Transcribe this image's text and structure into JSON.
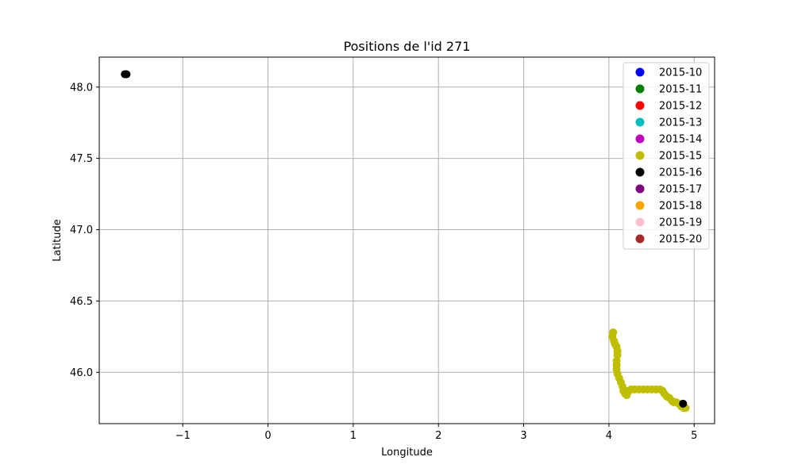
{
  "chart_data": {
    "type": "scatter",
    "title": "Positions de l'id 271",
    "xlabel": "Longitude",
    "ylabel": "Latitude",
    "xlim": [
      -1.98,
      5.24
    ],
    "ylim": [
      45.64,
      48.21
    ],
    "xticks": [
      -1,
      0,
      1,
      2,
      3,
      4,
      5
    ],
    "xtick_labels": [
      "−1",
      "0",
      "1",
      "2",
      "3",
      "4",
      "5"
    ],
    "yticks": [
      46.0,
      46.5,
      47.0,
      47.5,
      48.0
    ],
    "ytick_labels": [
      "46.0",
      "46.5",
      "47.0",
      "47.5",
      "48.0"
    ],
    "grid": true,
    "legend_position": "top-right",
    "legend": [
      {
        "label": "2015-10",
        "color": "#0000ff"
      },
      {
        "label": "2015-11",
        "color": "#008000"
      },
      {
        "label": "2015-12",
        "color": "#ff0000"
      },
      {
        "label": "2015-13",
        "color": "#00bfbf"
      },
      {
        "label": "2015-14",
        "color": "#bf00bf"
      },
      {
        "label": "2015-15",
        "color": "#bfbf00"
      },
      {
        "label": "2015-16",
        "color": "#000000"
      },
      {
        "label": "2015-17",
        "color": "#800080"
      },
      {
        "label": "2015-18",
        "color": "#ffa500"
      },
      {
        "label": "2015-19",
        "color": "#ffc0cb"
      },
      {
        "label": "2015-20",
        "color": "#a52a2a"
      }
    ],
    "series": [
      {
        "name": "2015-15",
        "color": "#bfbf00",
        "points": [
          [
            4.05,
            46.28
          ],
          [
            4.04,
            46.25
          ],
          [
            4.06,
            46.22
          ],
          [
            4.07,
            46.2
          ],
          [
            4.09,
            46.18
          ],
          [
            4.1,
            46.15
          ],
          [
            4.1,
            46.12
          ],
          [
            4.09,
            46.08
          ],
          [
            4.09,
            46.05
          ],
          [
            4.09,
            46.02
          ],
          [
            4.1,
            45.99
          ],
          [
            4.12,
            45.96
          ],
          [
            4.14,
            45.93
          ],
          [
            4.16,
            45.9
          ],
          [
            4.17,
            45.87
          ],
          [
            4.19,
            45.85
          ],
          [
            4.21,
            45.84
          ],
          [
            4.22,
            45.86
          ],
          [
            4.23,
            45.87
          ],
          [
            4.26,
            45.88
          ],
          [
            4.3,
            45.88
          ],
          [
            4.35,
            45.88
          ],
          [
            4.4,
            45.88
          ],
          [
            4.45,
            45.88
          ],
          [
            4.5,
            45.88
          ],
          [
            4.55,
            45.88
          ],
          [
            4.6,
            45.88
          ],
          [
            4.63,
            45.87
          ],
          [
            4.65,
            45.85
          ],
          [
            4.68,
            45.83
          ],
          [
            4.71,
            45.82
          ],
          [
            4.74,
            45.8
          ],
          [
            4.76,
            45.79
          ],
          [
            4.79,
            45.79
          ],
          [
            4.82,
            45.78
          ],
          [
            4.85,
            45.76
          ],
          [
            4.88,
            45.75
          ],
          [
            4.9,
            45.75
          ]
        ]
      },
      {
        "name": "2015-16",
        "color": "#000000",
        "points": [
          [
            -1.68,
            48.09
          ],
          [
            -1.67,
            48.09
          ],
          [
            -1.66,
            48.09
          ],
          [
            4.87,
            45.78
          ]
        ]
      }
    ]
  }
}
